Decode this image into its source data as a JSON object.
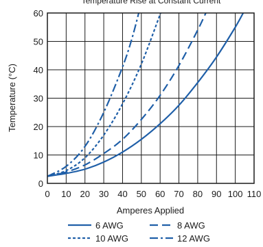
{
  "chart_data": {
    "type": "line",
    "title": "Temperature Rise at Constant Current",
    "xlabel": "Amperes Applied",
    "ylabel": "Temperature (°C)",
    "xlim": [
      0,
      110
    ],
    "ylim": [
      0,
      60
    ],
    "x_ticks": [
      "0",
      "10",
      "20",
      "30",
      "40",
      "50",
      "60",
      "70",
      "80",
      "90",
      "100",
      "110"
    ],
    "y_ticks": [
      "0",
      "10",
      "20",
      "30",
      "40",
      "50",
      "60"
    ],
    "grid": true,
    "legend_position": "bottom",
    "color": "#1f5fa8",
    "series": [
      {
        "name": "6 AWG",
        "line_style": "solid",
        "x": [
          0,
          10,
          20,
          30,
          40,
          50,
          60,
          70,
          80,
          90,
          100,
          105
        ],
        "y": [
          2.5,
          3.5,
          5,
          7.5,
          11,
          15.5,
          21,
          27.5,
          35.5,
          44.5,
          55,
          61
        ]
      },
      {
        "name": "8 AWG",
        "line_style": "dash",
        "x": [
          0,
          10,
          20,
          30,
          40,
          50,
          60,
          70,
          80,
          85
        ],
        "y": [
          2.5,
          4,
          6.5,
          10.5,
          15.5,
          22.5,
          31,
          41.5,
          54,
          61
        ]
      },
      {
        "name": "10 AWG",
        "line_style": "dot",
        "x": [
          0,
          10,
          20,
          30,
          40,
          50,
          60,
          61
        ],
        "y": [
          2.5,
          4.5,
          9,
          17,
          28,
          42,
          59.5,
          61
        ]
      },
      {
        "name": "12 AWG",
        "line_style": "dash-dot",
        "x": [
          0,
          10,
          20,
          30,
          40,
          45,
          49
        ],
        "y": [
          2.5,
          6,
          13,
          25,
          41,
          51,
          61
        ]
      }
    ]
  }
}
